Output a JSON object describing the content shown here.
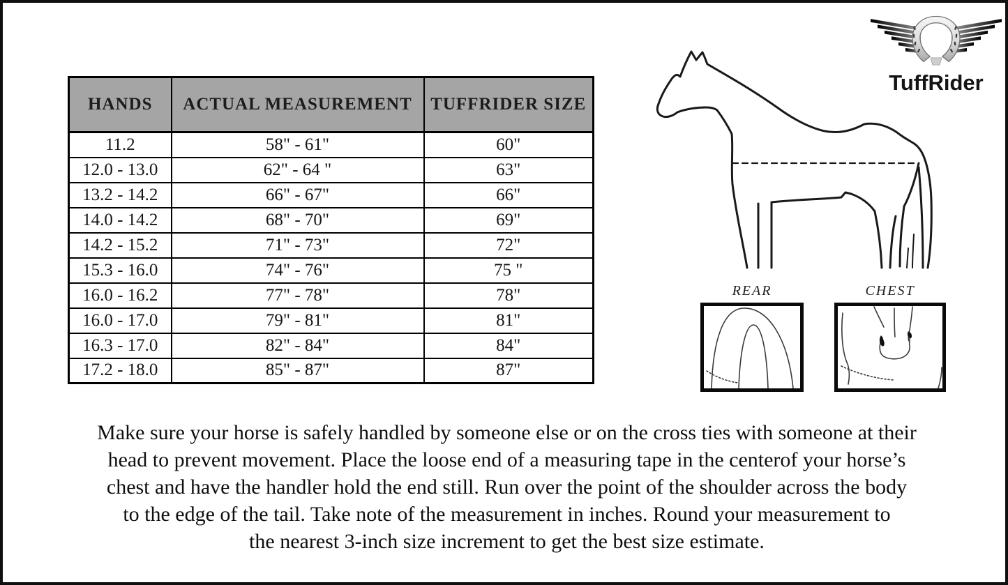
{
  "page": {
    "background": "#ffffff",
    "frame_border_color": "#101010"
  },
  "logo": {
    "brand": "TuffRider",
    "icon": "winged-horseshoe"
  },
  "size_table": {
    "header_bg": "#a5a5a5",
    "border_color": "#000000",
    "headers": [
      "HANDS",
      "ACTUAL MEASUREMENT",
      "TUFFRIDER SIZE"
    ],
    "rows": [
      [
        "11.2",
        "58\" - 61\"",
        "60\""
      ],
      [
        "12.0 - 13.0",
        "62\" - 64 \"",
        "63\""
      ],
      [
        "13.2 - 14.2",
        "66\" - 67\"",
        "66\""
      ],
      [
        "14.0 - 14.2",
        "68\" - 70\"",
        "69\""
      ],
      [
        "14.2 - 15.2",
        "71\" - 73\"",
        "72\""
      ],
      [
        "15.3 - 16.0",
        "74\" - 76\"",
        "75 \""
      ],
      [
        "16.0 - 16.2",
        "77\" - 78\"",
        "78\""
      ],
      [
        "16.0 - 17.0",
        "79\" - 81\"",
        "81\""
      ],
      [
        "16.3 - 17.0",
        "82\" - 84\"",
        "84\""
      ],
      [
        "17.2 - 18.0",
        "85\" - 87\"",
        "87\""
      ]
    ]
  },
  "horse_diagram": {
    "girth_line_style": "dashed",
    "rear_label": "REAR",
    "chest_label": "CHEST"
  },
  "instructions": {
    "lines": [
      "Make sure your horse is safely handled by someone else or on the cross ties with someone at their",
      "head to prevent movement. Place the loose end of a measuring tape in the centerof your horse’s",
      "chest and have the handler hold the end still. Run over the point of the shoulder across the body",
      "to the edge of the tail. Take note of the measurement in inches. Round your measurement to",
      "the nearest 3-inch size increment to get the best size estimate."
    ]
  }
}
